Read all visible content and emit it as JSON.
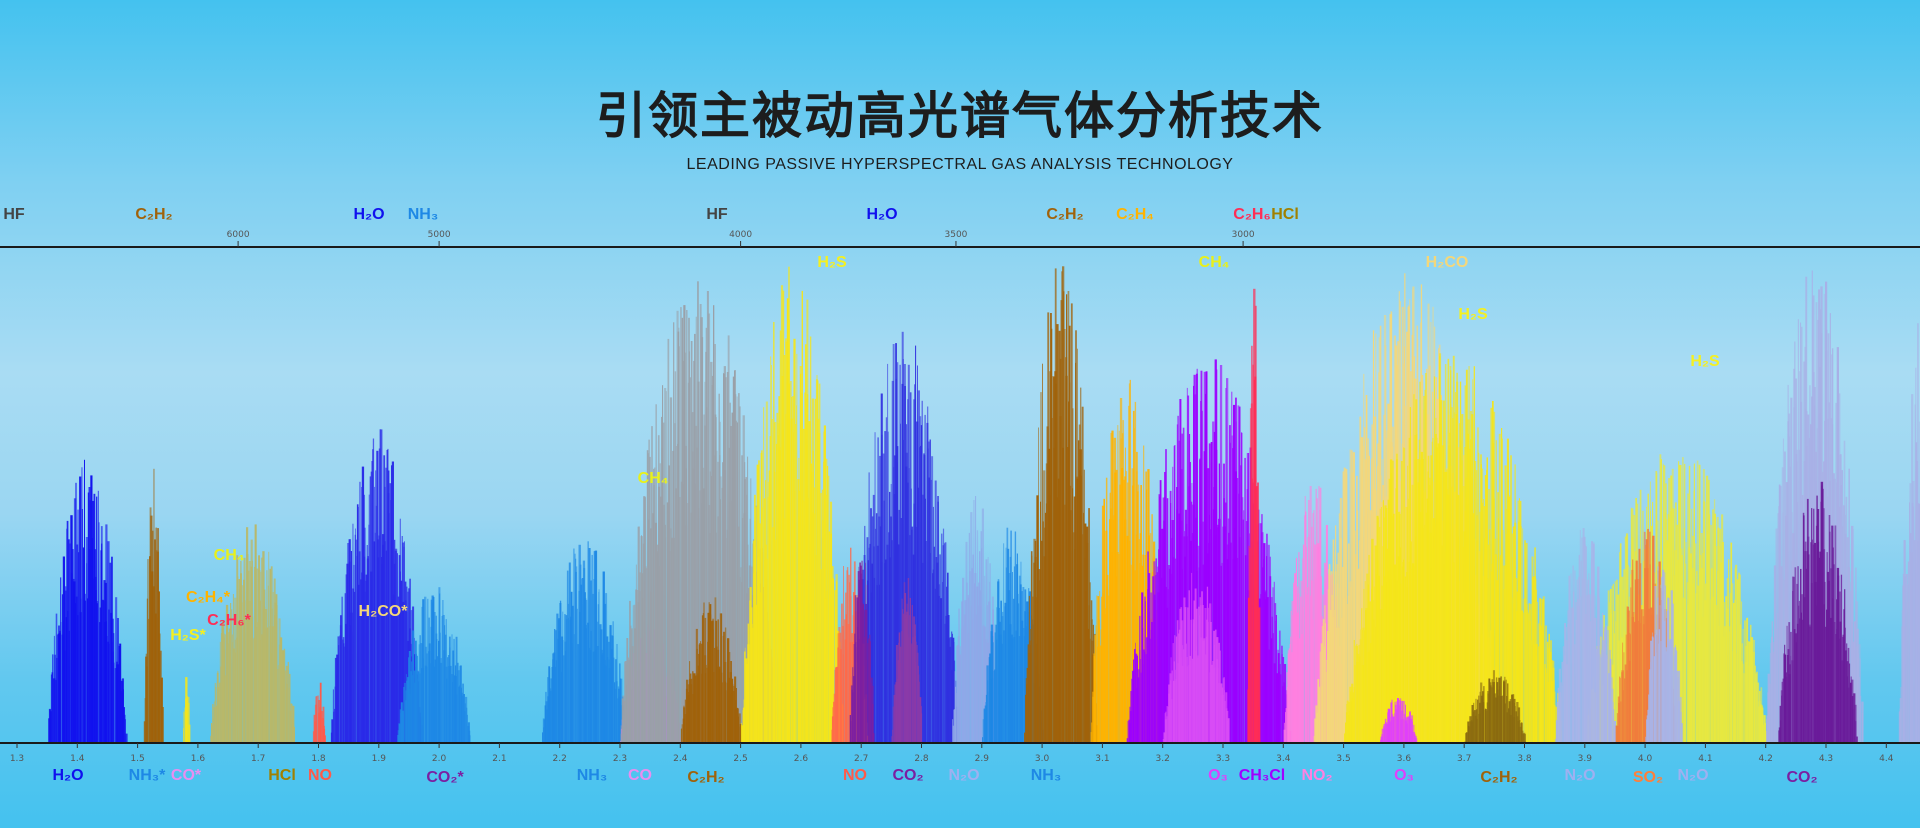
{
  "header": {
    "title": "引领主被动高光谱气体分析技术",
    "subtitle": "LEADING PASSIVE HYPERSPECTRAL GAS ANALYSIS TECHNOLOGY"
  },
  "chart_data": {
    "type": "area",
    "title": "",
    "xlabel": "",
    "ylabel": "",
    "x_unit_bottom": "µm",
    "x_unit_top": "cm⁻¹",
    "xlim": [
      1.28,
      4.5
    ],
    "bottom_ticks": [
      "1.3",
      "1.4",
      "1.5",
      "1.6",
      "1.7",
      "1.8",
      "1.9",
      "2.0",
      "2.1",
      "2.2",
      "2.3",
      "2.4",
      "2.5",
      "2.6",
      "2.7",
      "2.8",
      "2.9",
      "3.0",
      "3.1",
      "3.2",
      "3.3",
      "3.4",
      "3.5",
      "3.6",
      "3.7",
      "3.8",
      "3.9",
      "4.0",
      "4.1",
      "4.2",
      "4.3",
      "4.4"
    ],
    "top_ticks": [
      "6000",
      "5000",
      "4000",
      "3500",
      "3000"
    ],
    "grid": false,
    "bands": [
      {
        "gas": "H2O",
        "color": "#1212ee",
        "from": 1.35,
        "to": 1.48,
        "peak": 0.58
      },
      {
        "gas": "C2H2",
        "color": "#a0620a",
        "from": 1.51,
        "to": 1.54,
        "peak": 0.57
      },
      {
        "gas": "H2S",
        "color": "#f5e51a",
        "from": 1.575,
        "to": 1.585,
        "peak": 0.15
      },
      {
        "gas": "CH4",
        "color": "#b8b86a",
        "from": 1.62,
        "to": 1.76,
        "peak": 0.45
      },
      {
        "gas": "NO",
        "color": "#ff5a4a",
        "from": 1.79,
        "to": 1.81,
        "peak": 0.13
      },
      {
        "gas": "H2O",
        "color": "#2a2ae8",
        "from": 1.82,
        "to": 1.97,
        "peak": 0.65
      },
      {
        "gas": "NH3",
        "color": "#1e88e5",
        "from": 1.93,
        "to": 2.05,
        "peak": 0.32
      },
      {
        "gas": "NH3",
        "color": "#1e88e5",
        "from": 2.17,
        "to": 2.31,
        "peak": 0.42
      },
      {
        "gas": "CO",
        "color": "#c77ef0",
        "from": 2.3,
        "to": 2.4,
        "peak": 0.25
      },
      {
        "gas": "CH4",
        "color": "#9aa0a8",
        "from": 2.3,
        "to": 2.56,
        "peak": 0.95
      },
      {
        "gas": "C2H2",
        "color": "#a0620a",
        "from": 2.4,
        "to": 2.5,
        "peak": 0.3
      },
      {
        "gas": "H2S",
        "color": "#f5e51a",
        "from": 2.5,
        "to": 2.67,
        "peak": 0.97
      },
      {
        "gas": "H2O",
        "color": "#3030e0",
        "from": 2.68,
        "to": 2.86,
        "peak": 0.85
      },
      {
        "gas": "NO",
        "color": "#ff6a4a",
        "from": 2.65,
        "to": 2.71,
        "peak": 0.4
      },
      {
        "gas": "CO2",
        "color": "#7b1fa2",
        "from": 2.68,
        "to": 2.72,
        "peak": 0.4
      },
      {
        "gas": "CO2",
        "color": "#8a3aa8",
        "from": 2.75,
        "to": 2.8,
        "peak": 0.35
      },
      {
        "gas": "N2O",
        "color": "#8fa8e8",
        "from": 2.85,
        "to": 2.93,
        "peak": 0.5
      },
      {
        "gas": "NH3",
        "color": "#1e88e5",
        "from": 2.9,
        "to": 3.0,
        "peak": 0.45
      },
      {
        "gas": "C2H2",
        "color": "#a0620a",
        "from": 2.97,
        "to": 3.09,
        "peak": 0.99
      },
      {
        "gas": "C2H4",
        "color": "#ffb300",
        "from": 3.08,
        "to": 3.2,
        "peak": 0.8
      },
      {
        "gas": "CH4",
        "color": "#9b00ff",
        "from": 3.14,
        "to": 3.41,
        "peak": 0.78
      },
      {
        "gas": "O3",
        "color": "#d84cf5",
        "from": 3.2,
        "to": 3.31,
        "peak": 0.35
      },
      {
        "gas": "C2H6",
        "color": "#ff2d55",
        "from": 3.34,
        "to": 3.36,
        "peak": 0.95
      },
      {
        "gas": "NO2",
        "color": "#ff80e0",
        "from": 3.4,
        "to": 3.5,
        "peak": 0.55
      },
      {
        "gas": "H2CO",
        "color": "#f4d77a",
        "from": 3.45,
        "to": 3.76,
        "peak": 0.95
      },
      {
        "gas": "H2S",
        "color": "#f5e51a",
        "from": 3.5,
        "to": 3.86,
        "peak": 0.8
      },
      {
        "gas": "O3",
        "color": "#e040fb",
        "from": 3.56,
        "to": 3.62,
        "peak": 0.1
      },
      {
        "gas": "C2H2",
        "color": "#8a6a10",
        "from": 3.7,
        "to": 3.8,
        "peak": 0.15
      },
      {
        "gas": "H2S",
        "color": "#e8e840",
        "from": 3.9,
        "to": 4.2,
        "peak": 0.6
      },
      {
        "gas": "N2O",
        "color": "#a8b4e8",
        "from": 3.85,
        "to": 3.95,
        "peak": 0.45
      },
      {
        "gas": "SO2",
        "color": "#f07c3c",
        "from": 3.95,
        "to": 4.05,
        "peak": 0.44
      },
      {
        "gas": "N2O",
        "color": "#a8b4e8",
        "from": 4.0,
        "to": 4.06,
        "peak": 0.4
      },
      {
        "gas": "N2O",
        "color": "#a8b0e6",
        "from": 4.2,
        "to": 4.36,
        "peak": 1.0
      },
      {
        "gas": "CO2",
        "color": "#6a1b9a",
        "from": 4.22,
        "to": 4.35,
        "peak": 0.53
      },
      {
        "gas": "N2O",
        "color": "#a8b0e6",
        "from": 4.42,
        "to": 4.5,
        "peak": 0.9
      }
    ],
    "top_labels": [
      {
        "text": "HF",
        "color": "#444444"
      },
      {
        "text": "C₂H₂",
        "color": "#a0620a"
      },
      {
        "text": "H₂O",
        "color": "#1010ee"
      },
      {
        "text": "NH₃",
        "color": "#1e88e5"
      },
      {
        "text": "HF",
        "color": "#444444"
      },
      {
        "text": "H₂O",
        "color": "#1010ee"
      },
      {
        "text": "C₂H₂",
        "color": "#a0620a"
      },
      {
        "text": "C₂H₄",
        "color": "#ffb300"
      },
      {
        "text": "C₂H₆",
        "color": "#ff2d55"
      },
      {
        "text": "HCl",
        "color": "#a08000"
      }
    ],
    "inner_labels": [
      {
        "text": "CH₄",
        "color": "#e9f01a"
      },
      {
        "text": "C₂H₄*",
        "color": "#ffb300"
      },
      {
        "text": "C₂H₆*",
        "color": "#ff2d55"
      },
      {
        "text": "H₂S*",
        "color": "#f5f020"
      },
      {
        "text": "H₂CO*",
        "color": "#f4d77a"
      },
      {
        "text": "CH₄",
        "color": "#e9f01a"
      },
      {
        "text": "H₂S",
        "color": "#f5f020"
      },
      {
        "text": "CH₄",
        "color": "#e9f01a"
      },
      {
        "text": "H₂CO",
        "color": "#f4d77a"
      },
      {
        "text": "H₂S",
        "color": "#f5f020"
      },
      {
        "text": "H₂S",
        "color": "#f5f020"
      }
    ],
    "bottom_labels": [
      {
        "text": "H₂O",
        "color": "#1010ee"
      },
      {
        "text": "NH₃*",
        "color": "#1e88e5"
      },
      {
        "text": "CO*",
        "color": "#e88ef0"
      },
      {
        "text": "HCl",
        "color": "#a08000"
      },
      {
        "text": "NO",
        "color": "#ff5a4a"
      },
      {
        "text": "CO₂*",
        "color": "#7b1fa2"
      },
      {
        "text": "NH₃",
        "color": "#1e88e5"
      },
      {
        "text": "CO",
        "color": "#e88ef0"
      },
      {
        "text": "C₂H₂",
        "color": "#a0620a"
      },
      {
        "text": "NO",
        "color": "#ff5a4a"
      },
      {
        "text": "CO₂",
        "color": "#7b1fa2"
      },
      {
        "text": "N₂O",
        "color": "#9fb0f0"
      },
      {
        "text": "NH₃",
        "color": "#1e88e5"
      },
      {
        "text": "O₃",
        "color": "#e040fb"
      },
      {
        "text": "CH₃Cl",
        "color": "#a000ff"
      },
      {
        "text": "NO₂",
        "color": "#ff80e0"
      },
      {
        "text": "O₃",
        "color": "#e040fb"
      },
      {
        "text": "C₂H₂",
        "color": "#a0620a"
      },
      {
        "text": "N₂O",
        "color": "#9fb0f0"
      },
      {
        "text": "SO₂",
        "color": "#ff7f3a"
      },
      {
        "text": "N₂O",
        "color": "#9fb0f0"
      },
      {
        "text": "CO₂",
        "color": "#7b1fa2"
      }
    ]
  }
}
